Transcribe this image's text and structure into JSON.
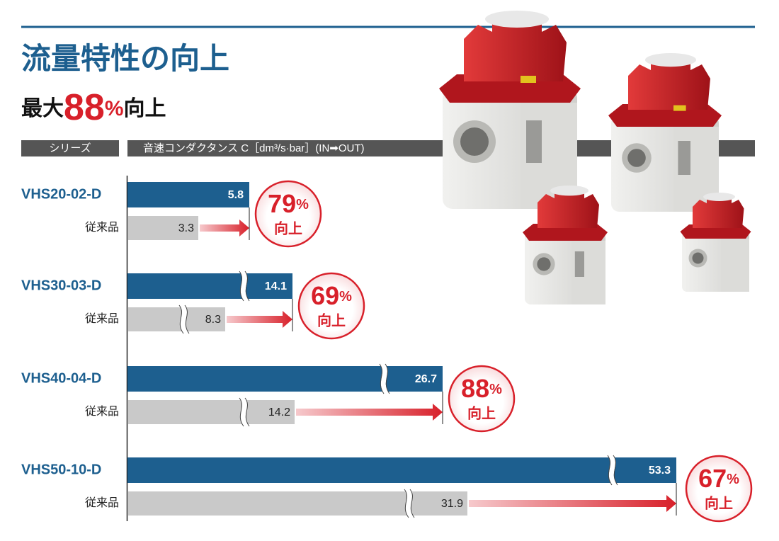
{
  "title": "流量特性の向上",
  "subtitle": {
    "prefix": "最大",
    "value": 88,
    "unit": "%",
    "suffix": "向上"
  },
  "table": {
    "headers": [
      "シリーズ",
      "音速コンダクタンス C［dm³/s·bar］(IN➡OUT)"
    ],
    "rows": [
      {
        "series": "VHS20-02-D",
        "value": 5.8,
        "conventional_label": "従来品",
        "conventional_value": 3.3,
        "improvement": 79,
        "unit": "%",
        "improvement_label": "向上"
      },
      {
        "series": "VHS30-03-D",
        "value": 14.1,
        "conventional_label": "従来品",
        "conventional_value": 8.3,
        "improvement": 69,
        "unit": "%",
        "improvement_label": "向上"
      },
      {
        "series": "VHS40-04-D",
        "value": 26.7,
        "conventional_label": "従来品",
        "conventional_value": 14.2,
        "improvement": 88,
        "unit": "%",
        "improvement_label": "向上"
      },
      {
        "series": "VHS50-10-D",
        "value": 53.3,
        "conventional_label": "従来品",
        "conventional_value": 31.9,
        "improvement": 67,
        "unit": "%",
        "improvement_label": "向上"
      }
    ]
  }
}
